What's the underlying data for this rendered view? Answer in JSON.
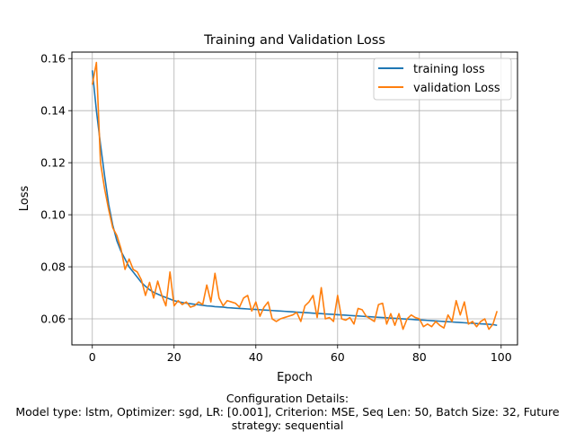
{
  "chart_data": {
    "type": "line",
    "title": "Training and Validation Loss",
    "xlabel": "Epoch",
    "ylabel": "Loss",
    "xlim": [
      -5,
      104
    ],
    "ylim": [
      0.05,
      0.1625
    ],
    "xticks": [
      0,
      20,
      40,
      60,
      80,
      100
    ],
    "yticks": [
      0.06,
      0.08,
      0.1,
      0.12,
      0.14,
      0.16
    ],
    "xtick_labels": [
      "0",
      "20",
      "40",
      "60",
      "80",
      "100"
    ],
    "ytick_labels": [
      "0.06",
      "0.08",
      "0.10",
      "0.12",
      "0.14",
      "0.16"
    ],
    "grid": true,
    "legend_position": "top-right",
    "series": [
      {
        "name": "training loss",
        "color": "#1f77b4",
        "x": [
          0,
          1,
          2,
          3,
          4,
          5,
          6,
          7,
          8,
          9,
          10,
          11,
          12,
          13,
          14,
          15,
          16,
          17,
          18,
          19,
          20,
          21,
          22,
          23,
          24,
          25,
          26,
          27,
          28,
          29,
          30,
          31,
          32,
          33,
          34,
          35,
          36,
          37,
          38,
          39,
          40,
          41,
          42,
          43,
          44,
          45,
          46,
          47,
          48,
          49,
          50,
          51,
          52,
          53,
          54,
          55,
          56,
          57,
          58,
          59,
          60,
          61,
          62,
          63,
          64,
          65,
          66,
          67,
          68,
          69,
          70,
          71,
          72,
          73,
          74,
          75,
          76,
          77,
          78,
          79,
          80,
          81,
          82,
          83,
          84,
          85,
          86,
          87,
          88,
          89,
          90,
          91,
          92,
          93,
          94,
          95,
          96,
          97,
          98,
          99
        ],
        "values": [
          0.1555,
          0.14,
          0.127,
          0.115,
          0.104,
          0.096,
          0.09,
          0.086,
          0.083,
          0.08,
          0.078,
          0.076,
          0.074,
          0.0725,
          0.0712,
          0.0702,
          0.0695,
          0.0688,
          0.0682,
          0.0676,
          0.067,
          0.0666,
          0.0663,
          0.066,
          0.0658,
          0.0656,
          0.0654,
          0.0652,
          0.065,
          0.0649,
          0.0647,
          0.0646,
          0.0645,
          0.0643,
          0.0642,
          0.0641,
          0.064,
          0.0639,
          0.0638,
          0.0637,
          0.0636,
          0.0635,
          0.0634,
          0.0633,
          0.0632,
          0.0631,
          0.063,
          0.0629,
          0.0628,
          0.0627,
          0.0626,
          0.0625,
          0.0624,
          0.0623,
          0.0622,
          0.0621,
          0.062,
          0.0619,
          0.0618,
          0.0617,
          0.0616,
          0.0615,
          0.0614,
          0.0613,
          0.0612,
          0.0611,
          0.061,
          0.0609,
          0.0608,
          0.0607,
          0.0606,
          0.0605,
          0.0604,
          0.0603,
          0.0602,
          0.0601,
          0.06,
          0.0599,
          0.0598,
          0.0597,
          0.0596,
          0.0595,
          0.0594,
          0.0593,
          0.0592,
          0.0591,
          0.059,
          0.0589,
          0.0588,
          0.0587,
          0.0586,
          0.0585,
          0.0584,
          0.0583,
          0.0582,
          0.0581,
          0.058,
          0.0579,
          0.0578,
          0.0575
        ]
      },
      {
        "name": "validation Loss",
        "color": "#ff7f0e",
        "x": [
          0,
          1,
          2,
          3,
          4,
          5,
          6,
          7,
          8,
          9,
          10,
          11,
          12,
          13,
          14,
          15,
          16,
          17,
          18,
          19,
          20,
          21,
          22,
          23,
          24,
          25,
          26,
          27,
          28,
          29,
          30,
          31,
          32,
          33,
          34,
          35,
          36,
          37,
          38,
          39,
          40,
          41,
          42,
          43,
          44,
          45,
          46,
          47,
          48,
          49,
          50,
          51,
          52,
          53,
          54,
          55,
          56,
          57,
          58,
          59,
          60,
          61,
          62,
          63,
          64,
          65,
          66,
          67,
          68,
          69,
          70,
          71,
          72,
          73,
          74,
          75,
          76,
          77,
          78,
          79,
          80,
          81,
          82,
          83,
          84,
          85,
          86,
          87,
          88,
          89,
          90,
          91,
          92,
          93,
          94,
          95,
          96,
          97,
          98,
          99
        ],
        "values": [
          0.15,
          0.1585,
          0.12,
          0.11,
          0.102,
          0.095,
          0.092,
          0.087,
          0.079,
          0.083,
          0.079,
          0.078,
          0.075,
          0.069,
          0.074,
          0.068,
          0.0745,
          0.069,
          0.065,
          0.078,
          0.065,
          0.067,
          0.0655,
          0.0665,
          0.0645,
          0.065,
          0.0665,
          0.0655,
          0.073,
          0.0665,
          0.0775,
          0.068,
          0.065,
          0.067,
          0.0665,
          0.066,
          0.0645,
          0.068,
          0.069,
          0.063,
          0.0665,
          0.061,
          0.0645,
          0.0665,
          0.06,
          0.059,
          0.06,
          0.0605,
          0.061,
          0.0615,
          0.0625,
          0.059,
          0.065,
          0.0665,
          0.069,
          0.0605,
          0.072,
          0.06,
          0.0605,
          0.059,
          0.069,
          0.06,
          0.0595,
          0.0605,
          0.058,
          0.064,
          0.0635,
          0.061,
          0.06,
          0.059,
          0.0655,
          0.066,
          0.058,
          0.062,
          0.0575,
          0.062,
          0.056,
          0.06,
          0.0615,
          0.0605,
          0.06,
          0.057,
          0.058,
          0.057,
          0.059,
          0.0575,
          0.0565,
          0.0615,
          0.059,
          0.067,
          0.0615,
          0.0665,
          0.058,
          0.059,
          0.057,
          0.059,
          0.06,
          0.056,
          0.058,
          0.063
        ]
      }
    ]
  },
  "caption": {
    "line1": "Configuration Details:",
    "line2": "Model type: lstm, Optimizer: sgd, LR: [0.001], Criterion: MSE, Seq Len: 50, Batch Size: 32, Future",
    "line3": "strategy: sequential"
  }
}
